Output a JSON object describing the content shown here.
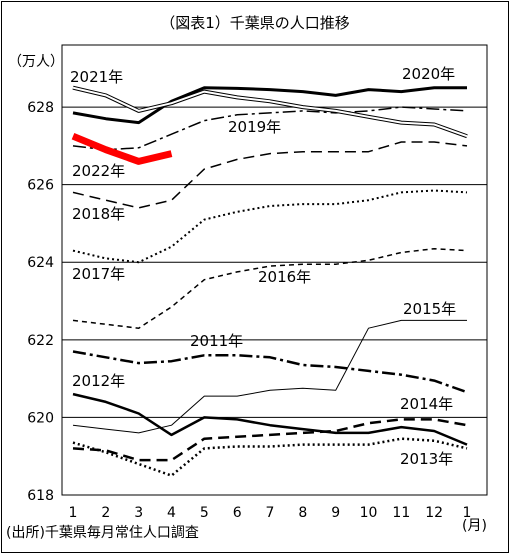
{
  "chart_data": {
    "type": "line",
    "title": "（図表1）千葉県の人口推移",
    "y_unit": "（万人）",
    "x_unit": "(月)",
    "source": "(出所)千葉県毎月常住人口調査",
    "categories": [
      "1",
      "2",
      "3",
      "4",
      "5",
      "6",
      "7",
      "8",
      "9",
      "10",
      "11",
      "12",
      "1"
    ],
    "ylim": [
      618,
      629.6
    ],
    "yticks": [
      618,
      620,
      622,
      624,
      626,
      628
    ],
    "grid": true,
    "series": [
      {
        "name": "2011年",
        "color": "#000000",
        "style": "dashdot",
        "width": 2.5,
        "values": [
          621.7,
          621.55,
          621.4,
          621.45,
          621.6,
          621.6,
          621.55,
          621.35,
          621.3,
          621.2,
          621.1,
          620.95,
          620.65
        ]
      },
      {
        "name": "2012年",
        "color": "#000000",
        "style": "solid",
        "width": 2.5,
        "values": [
          620.6,
          620.4,
          620.1,
          619.55,
          620.0,
          619.95,
          619.8,
          619.7,
          619.6,
          619.6,
          619.75,
          619.65,
          619.3
        ]
      },
      {
        "name": "2013年",
        "color": "#000000",
        "style": "dotted",
        "width": 2.5,
        "values": [
          619.35,
          619.1,
          618.8,
          618.5,
          619.2,
          619.25,
          619.25,
          619.3,
          619.3,
          619.3,
          619.45,
          619.4,
          619.2
        ]
      },
      {
        "name": "2014年",
        "color": "#000000",
        "style": "dashed",
        "width": 2.5,
        "values": [
          619.2,
          619.15,
          618.9,
          618.9,
          619.45,
          619.5,
          619.55,
          619.6,
          619.65,
          619.85,
          619.95,
          619.95,
          619.8
        ]
      },
      {
        "name": "2015年",
        "color": "#000000",
        "style": "solid",
        "width": 1,
        "values": [
          619.8,
          619.7,
          619.6,
          619.8,
          620.55,
          620.55,
          620.7,
          620.75,
          620.7,
          622.3,
          622.5,
          622.5,
          622.5
        ]
      },
      {
        "name": "2016年",
        "color": "#000000",
        "style": "shortdash",
        "width": 1.5,
        "values": [
          622.5,
          622.4,
          622.3,
          622.85,
          623.55,
          623.75,
          623.9,
          623.95,
          623.95,
          624.05,
          624.25,
          624.35,
          624.3
        ]
      },
      {
        "name": "2017年",
        "color": "#000000",
        "style": "dotted",
        "width": 2,
        "values": [
          624.3,
          624.1,
          624.0,
          624.4,
          625.1,
          625.3,
          625.45,
          625.5,
          625.5,
          625.6,
          625.8,
          625.85,
          625.8
        ]
      },
      {
        "name": "2018年",
        "color": "#000000",
        "style": "dashed",
        "width": 1.5,
        "values": [
          625.8,
          625.6,
          625.4,
          625.6,
          626.4,
          626.65,
          626.8,
          626.85,
          626.85,
          626.85,
          627.1,
          627.1,
          627.0
        ]
      },
      {
        "name": "2019年",
        "color": "#000000",
        "style": "dashdot",
        "width": 1.5,
        "values": [
          627.0,
          626.9,
          626.95,
          627.3,
          627.65,
          627.8,
          627.85,
          627.9,
          627.85,
          627.9,
          628.0,
          627.95,
          627.9
        ]
      },
      {
        "name": "2020年",
        "color": "#000000",
        "style": "solid",
        "width": 3,
        "values": [
          627.85,
          627.7,
          627.6,
          628.15,
          628.5,
          628.48,
          628.45,
          628.4,
          628.3,
          628.45,
          628.4,
          628.5,
          628.5
        ]
      },
      {
        "name": "2021年",
        "color": "#000000",
        "style": "double",
        "width": 4,
        "values": [
          628.5,
          628.3,
          627.9,
          628.1,
          628.4,
          628.25,
          628.15,
          628.0,
          627.9,
          627.75,
          627.6,
          627.55,
          627.25
        ]
      },
      {
        "name": "2022年",
        "color": "#ff0000",
        "style": "solid",
        "width": 7,
        "values": [
          627.25,
          626.9,
          626.6,
          626.8,
          null,
          null,
          null,
          null,
          null,
          null,
          null,
          null,
          null
        ]
      }
    ]
  }
}
